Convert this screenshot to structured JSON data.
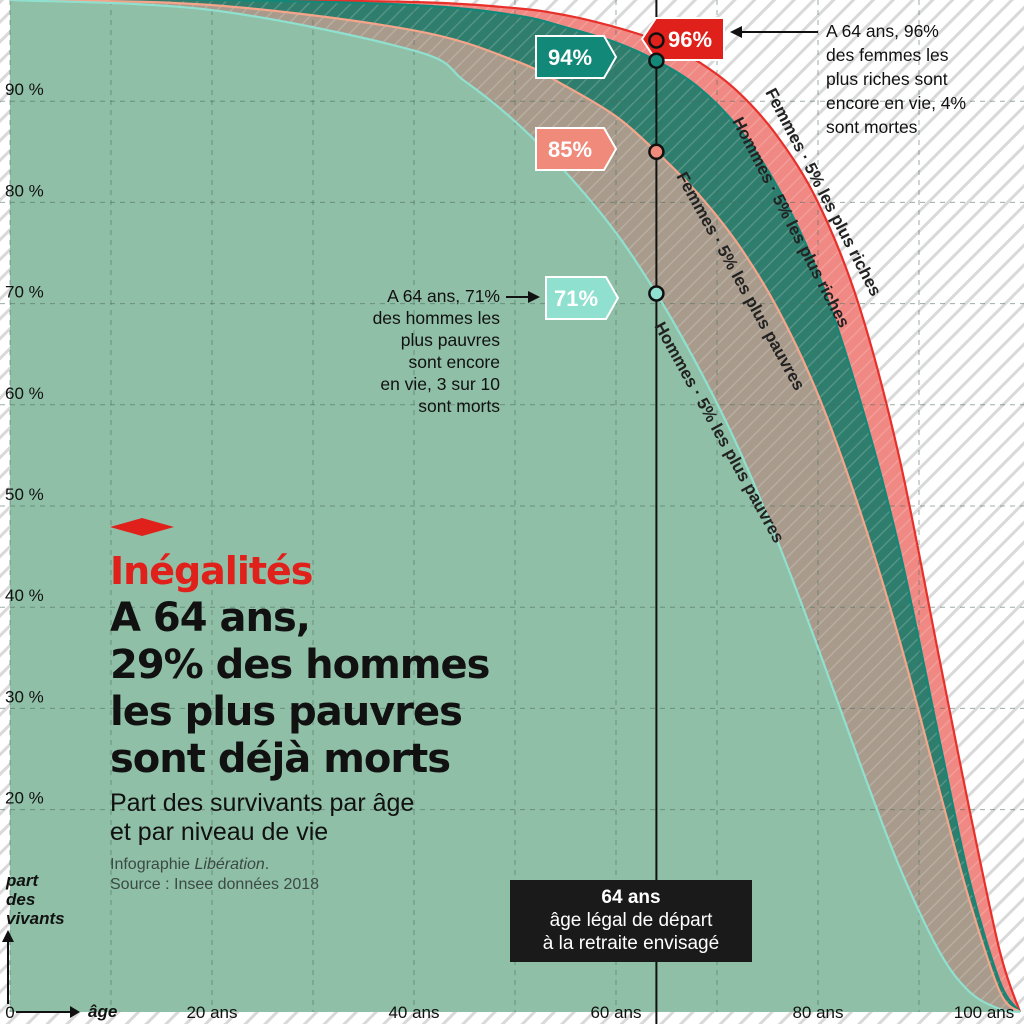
{
  "kicker": "Inégalités",
  "headline": [
    "A 64 ans,",
    "29% des hommes",
    "les plus pauvres",
    "sont déjà morts"
  ],
  "subtitle": [
    "Part des survivants par âge",
    "et par niveau de vie"
  ],
  "credit": {
    "prefix": "Infographie ",
    "outlet": "Libération",
    "suffix": ".",
    "source": "Source : Insee données 2018"
  },
  "age_marker": {
    "age": "64 ans",
    "line1": "âge légal de départ",
    "line2": "à la retraite envisagé"
  },
  "annotations": {
    "rich_women": [
      "A 64 ans, 96%",
      "des femmes les",
      "plus riches sont",
      "encore en vie, 4%",
      "sont mortes"
    ],
    "poor_men": [
      "A 64 ans, 71%",
      "des hommes les",
      "plus pauvres",
      "sont encore",
      "en vie, 3 sur 10",
      "sont morts"
    ]
  },
  "colors": {
    "background_fill": "#8fbfa6",
    "hommes_pauvres": "#8fe0cf",
    "femmes_pauvres": "#f4a58a",
    "hommes_riches": "#128878",
    "femmes_riches": "#e8302b",
    "grid": "#4a6a5c",
    "hatch": "#d9d9d9"
  },
  "chart_data": {
    "type": "area",
    "title": "Part des survivants par âge et par niveau de vie",
    "xlabel": "âge",
    "ylabel": "part des vivants",
    "xlim": [
      0,
      100
    ],
    "ylim": [
      0,
      100
    ],
    "x_ticks": [
      {
        "value": 0,
        "label": "0"
      },
      {
        "value": 20,
        "label": "20 ans"
      },
      {
        "value": 40,
        "label": "40 ans"
      },
      {
        "value": 60,
        "label": "60 ans"
      },
      {
        "value": 80,
        "label": "80 ans"
      },
      {
        "value": 100,
        "label": "100 ans"
      }
    ],
    "y_ticks": [
      {
        "value": 20,
        "label": "20 %"
      },
      {
        "value": 30,
        "label": "30 %"
      },
      {
        "value": 40,
        "label": "40 %"
      },
      {
        "value": 50,
        "label": "50 %"
      },
      {
        "value": 60,
        "label": "60 %"
      },
      {
        "value": 70,
        "label": "70 %"
      },
      {
        "value": 80,
        "label": "80 %"
      },
      {
        "value": 90,
        "label": "90 %"
      }
    ],
    "grid": true,
    "marker_age": 64,
    "series": [
      {
        "name": "Femmes · 5% les plus riches",
        "key": "femmes_riches",
        "label_at64": "96%",
        "value_at64": 96,
        "x": [
          0,
          20,
          40,
          50,
          55,
          60,
          64,
          68,
          72,
          76,
          80,
          84,
          88,
          92,
          95,
          98,
          100
        ],
        "y": [
          100,
          100,
          99.8,
          99.2,
          98.5,
          97.3,
          96,
          94,
          91,
          86.5,
          80,
          70,
          55,
          35,
          20,
          6,
          0
        ]
      },
      {
        "name": "Hommes · 5% les plus riches",
        "key": "hommes_riches",
        "label_at64": "94%",
        "value_at64": 94,
        "x": [
          0,
          20,
          40,
          50,
          55,
          60,
          64,
          68,
          72,
          76,
          80,
          84,
          88,
          92,
          95,
          98,
          100
        ],
        "y": [
          100,
          100,
          99.5,
          98.5,
          97.3,
          95.8,
          94,
          91.5,
          87.5,
          81.5,
          73,
          61,
          46,
          27,
          13,
          3,
          0
        ]
      },
      {
        "name": "Femmes · 5% les plus pauvres",
        "key": "femmes_pauvres",
        "label_at64": "85%",
        "value_at64": 85,
        "x": [
          0,
          20,
          40,
          50,
          55,
          60,
          64,
          68,
          72,
          76,
          80,
          84,
          88,
          92,
          95,
          98,
          100
        ],
        "y": [
          100,
          99.5,
          97,
          94,
          91.5,
          88.5,
          85,
          81,
          76,
          69.5,
          61,
          50,
          37,
          22,
          11,
          2,
          0
        ]
      },
      {
        "name": "Hommes · 5% les plus pauvres",
        "key": "hommes_pauvres",
        "label_at64": "71%",
        "value_at64": 71,
        "x": [
          0,
          20,
          40,
          45,
          50,
          55,
          60,
          64,
          68,
          72,
          76,
          80,
          84,
          88,
          92,
          95,
          98,
          100
        ],
        "y": [
          100,
          99,
          95,
          92,
          88,
          83,
          77,
          71,
          64,
          56,
          46.5,
          36,
          25,
          14.5,
          6,
          2,
          0.3,
          0
        ]
      }
    ]
  }
}
